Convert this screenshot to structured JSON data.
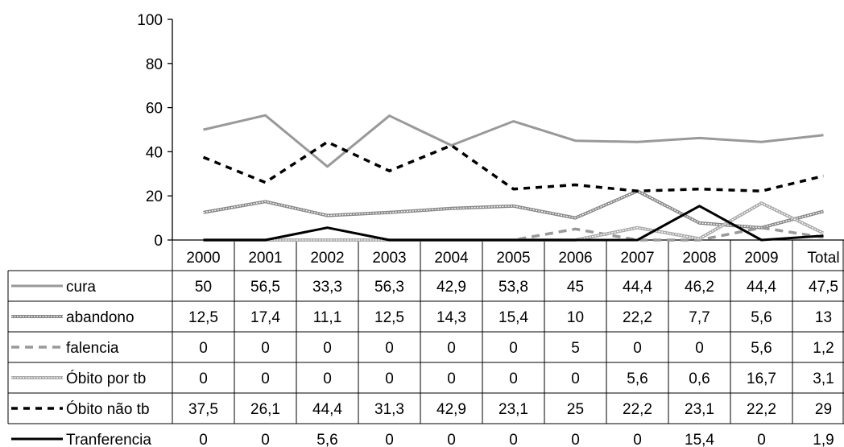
{
  "chart_data": {
    "type": "line",
    "categories": [
      "2000",
      "2001",
      "2002",
      "2003",
      "2004",
      "2005",
      "2006",
      "2007",
      "2008",
      "2009",
      "Total"
    ],
    "ylim": [
      0,
      100
    ],
    "yticks": [
      "0",
      "20",
      "40",
      "60",
      "80",
      "100"
    ],
    "grid": false,
    "legend": "data-table-left",
    "series": [
      {
        "name": "cura",
        "style": "solid",
        "color": "#999999",
        "values": [
          50,
          56.5,
          33.3,
          56.3,
          42.9,
          53.8,
          45,
          44.4,
          46.2,
          44.4,
          47.5
        ],
        "labels": [
          "50",
          "56,5",
          "33,3",
          "56,3",
          "42,9",
          "53,8",
          "45",
          "44,4",
          "46,2",
          "44,4",
          "47,5"
        ]
      },
      {
        "name": "abandono",
        "style": "double-gray",
        "color": "#808080",
        "values": [
          12.5,
          17.4,
          11.1,
          12.5,
          14.3,
          15.4,
          10,
          22.2,
          7.7,
          5.6,
          13
        ],
        "labels": [
          "12,5",
          "17,4",
          "11,1",
          "12,5",
          "14,3",
          "15,4",
          "10",
          "22,2",
          "7,7",
          "5,6",
          "13"
        ]
      },
      {
        "name": "falencia",
        "style": "dashed-gray",
        "color": "#999999",
        "values": [
          0,
          0,
          0,
          0,
          0,
          0,
          5,
          0,
          0,
          5.6,
          1.2
        ],
        "labels": [
          "0",
          "0",
          "0",
          "0",
          "0",
          "0",
          "5",
          "0",
          "0",
          "5,6",
          "1,2"
        ]
      },
      {
        "name": "Óbito por tb",
        "style": "double-light",
        "color": "#bbbbbb",
        "values": [
          0,
          0,
          0,
          0,
          0,
          0,
          0,
          5.6,
          0.6,
          16.7,
          3.1
        ],
        "labels": [
          "0",
          "0",
          "0",
          "0",
          "0",
          "0",
          "0",
          "5,6",
          "0,6",
          "16,7",
          "3,1"
        ]
      },
      {
        "name": "Óbito não tb",
        "style": "dashed-black",
        "color": "#000000",
        "values": [
          37.5,
          26.1,
          44.4,
          31.3,
          42.9,
          23.1,
          25,
          22.2,
          23.1,
          22.2,
          29
        ],
        "labels": [
          "37,5",
          "26,1",
          "44,4",
          "31,3",
          "42,9",
          "23,1",
          "25",
          "22,2",
          "23,1",
          "22,2",
          "29"
        ]
      },
      {
        "name": "Tranferencia",
        "style": "solid-black",
        "color": "#000000",
        "values": [
          0,
          0,
          5.6,
          0,
          0,
          0,
          0,
          0,
          15.4,
          0,
          1.9
        ],
        "labels": [
          "0",
          "0",
          "5,6",
          "0",
          "0",
          "0",
          "0",
          "0",
          "15,4",
          "0",
          "1,9"
        ]
      }
    ]
  }
}
